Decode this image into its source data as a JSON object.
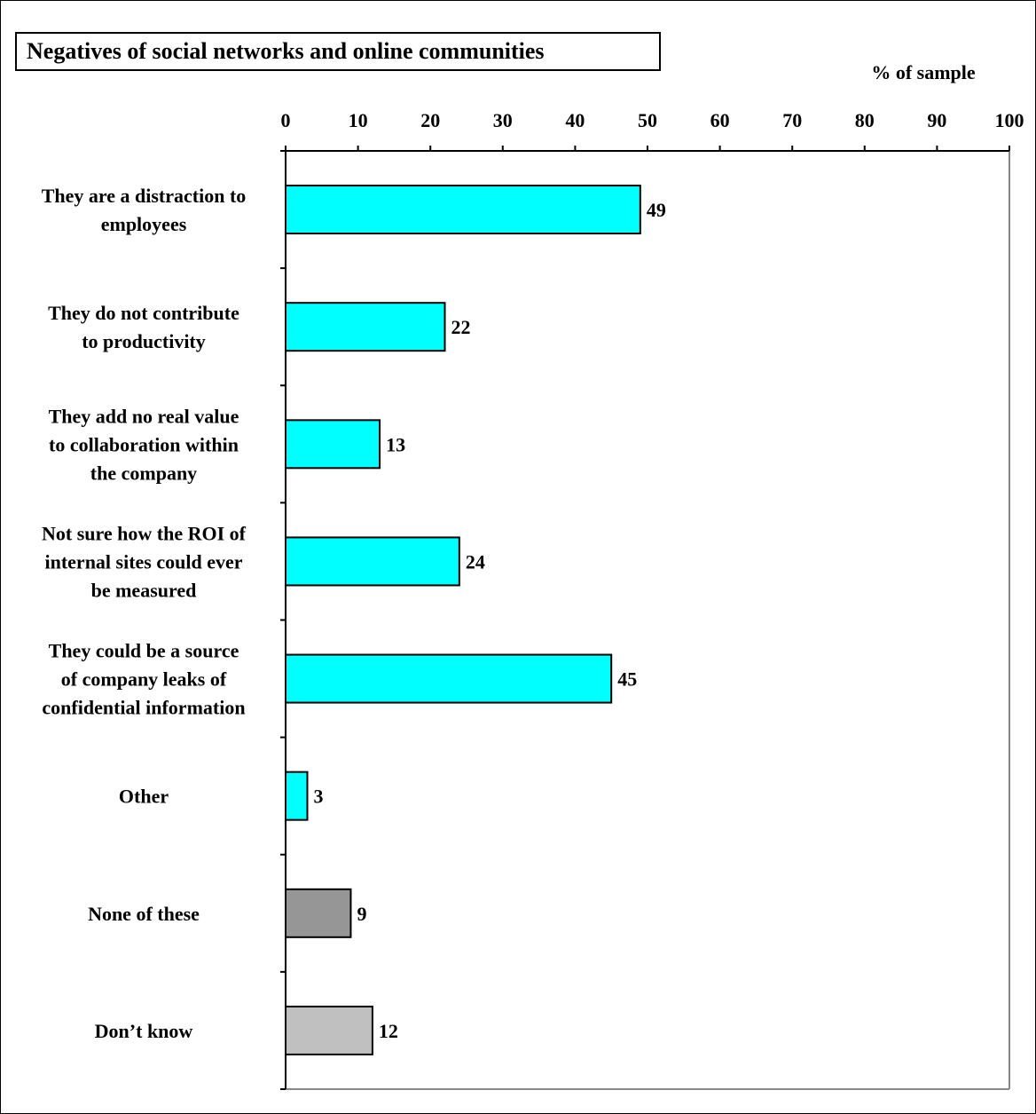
{
  "chart_data": {
    "type": "bar",
    "orientation": "horizontal",
    "title": "Negatives of social networks and online communities",
    "xlabel": "% of sample",
    "ylabel": "",
    "xlim": [
      0,
      100
    ],
    "xticks": [
      "0",
      "10",
      "20",
      "30",
      "40",
      "50",
      "60",
      "70",
      "80",
      "90",
      "100"
    ],
    "grid": false,
    "categories": [
      [
        "They are a distraction to",
        "employees"
      ],
      [
        "They do not contribute",
        "to productivity"
      ],
      [
        "They add no real value",
        "to collaboration within",
        "the company"
      ],
      [
        "Not sure how the ROI of",
        "internal sites could ever",
        "be measured"
      ],
      [
        "They could be a source",
        "of company leaks of",
        "confidential information"
      ],
      [
        "Other"
      ],
      [
        "None of these"
      ],
      [
        "Don’t know"
      ]
    ],
    "values": [
      49,
      22,
      13,
      24,
      45,
      3,
      9,
      12
    ],
    "data_labels": [
      "49",
      "22",
      "13",
      "24",
      "45",
      "3",
      "9",
      "12"
    ],
    "bar_colors": [
      "#00ffff",
      "#00ffff",
      "#00ffff",
      "#00ffff",
      "#00ffff",
      "#00ffff",
      "#969696",
      "#c0c0c0"
    ]
  }
}
